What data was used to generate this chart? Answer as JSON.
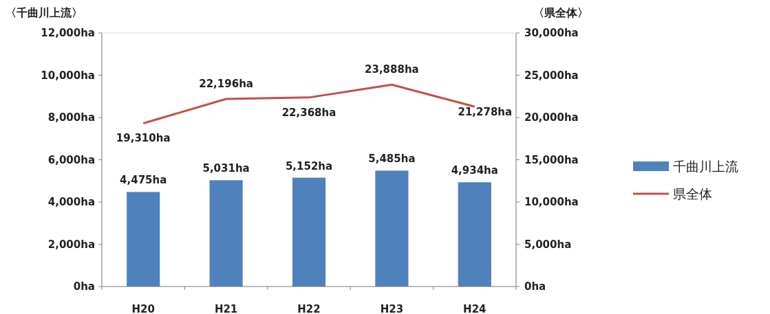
{
  "chart_data": {
    "type": "bar",
    "ylabel": "〈千曲川上流〉",
    "y2label": "〈県全体〉",
    "categories": [
      "H20",
      "H21",
      "H22",
      "H23",
      "H24"
    ],
    "series": [
      {
        "name": "千曲川上流",
        "color": "#4f81bd",
        "values": [
          4475,
          5031,
          5152,
          5485,
          4934
        ],
        "value_labels": [
          "4,475ha",
          "5,031ha",
          "5,152ha",
          "5,485ha",
          "4,934ha"
        ]
      },
      {
        "name": "県全体",
        "type": "line",
        "axis": "y2",
        "color": "#c0504d",
        "values": [
          19310,
          22196,
          22368,
          23888,
          21278
        ],
        "value_labels": [
          "19,310ha",
          "22,196ha",
          "22,368ha",
          "23,888ha",
          "21,278ha"
        ]
      }
    ],
    "ylim": [
      0,
      12000
    ],
    "yticks": [
      {
        "value": 0,
        "label": "0ha"
      },
      {
        "value": 2000,
        "label": "2,000ha"
      },
      {
        "value": 4000,
        "label": "4,000ha"
      },
      {
        "value": 6000,
        "label": "6,000ha"
      },
      {
        "value": 8000,
        "label": "8,000ha"
      },
      {
        "value": 10000,
        "label": "10,000ha"
      },
      {
        "value": 12000,
        "label": "12,000ha"
      }
    ],
    "y2lim": [
      0,
      30000
    ],
    "y2ticks": [
      {
        "value": 0,
        "label": "0ha"
      },
      {
        "value": 5000,
        "label": "5,000ha"
      },
      {
        "value": 10000,
        "label": "10,000ha"
      },
      {
        "value": 15000,
        "label": "15,000ha"
      },
      {
        "value": 20000,
        "label": "20,000ha"
      },
      {
        "value": 25000,
        "label": "25,000ha"
      },
      {
        "value": 30000,
        "label": "30,000ha"
      }
    ],
    "legend": "right",
    "grid": false,
    "marker": "none"
  }
}
